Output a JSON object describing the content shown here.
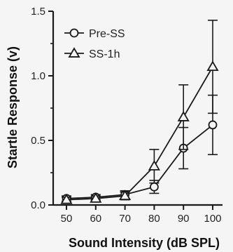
{
  "chart_data": {
    "type": "line",
    "xlabel": "Sound Intensity (dB SPL)",
    "ylabel": "Startle Response (v)",
    "x": [
      50,
      60,
      70,
      80,
      90,
      100
    ],
    "x_ticks": [
      "50",
      "60",
      "70",
      "80",
      "90",
      "100"
    ],
    "y_ticks": [
      "0.0",
      "0.5",
      "1.0",
      "1.5"
    ],
    "ylim": [
      0,
      1.5
    ],
    "grid": false,
    "legend_position": "top-left",
    "series": [
      {
        "name": "Pre-SS",
        "marker": "circle",
        "values": [
          0.05,
          0.06,
          0.08,
          0.14,
          0.44,
          0.62
        ],
        "error": [
          0.02,
          0.02,
          0.03,
          0.05,
          0.16,
          0.23
        ]
      },
      {
        "name": "SS-1h",
        "marker": "triangle",
        "values": [
          0.04,
          0.05,
          0.07,
          0.3,
          0.68,
          1.07
        ],
        "error": [
          0.02,
          0.02,
          0.03,
          0.13,
          0.25,
          0.36
        ]
      }
    ],
    "colors": {
      "line": "#1a1a1a",
      "background": "#f5f5f5"
    }
  }
}
